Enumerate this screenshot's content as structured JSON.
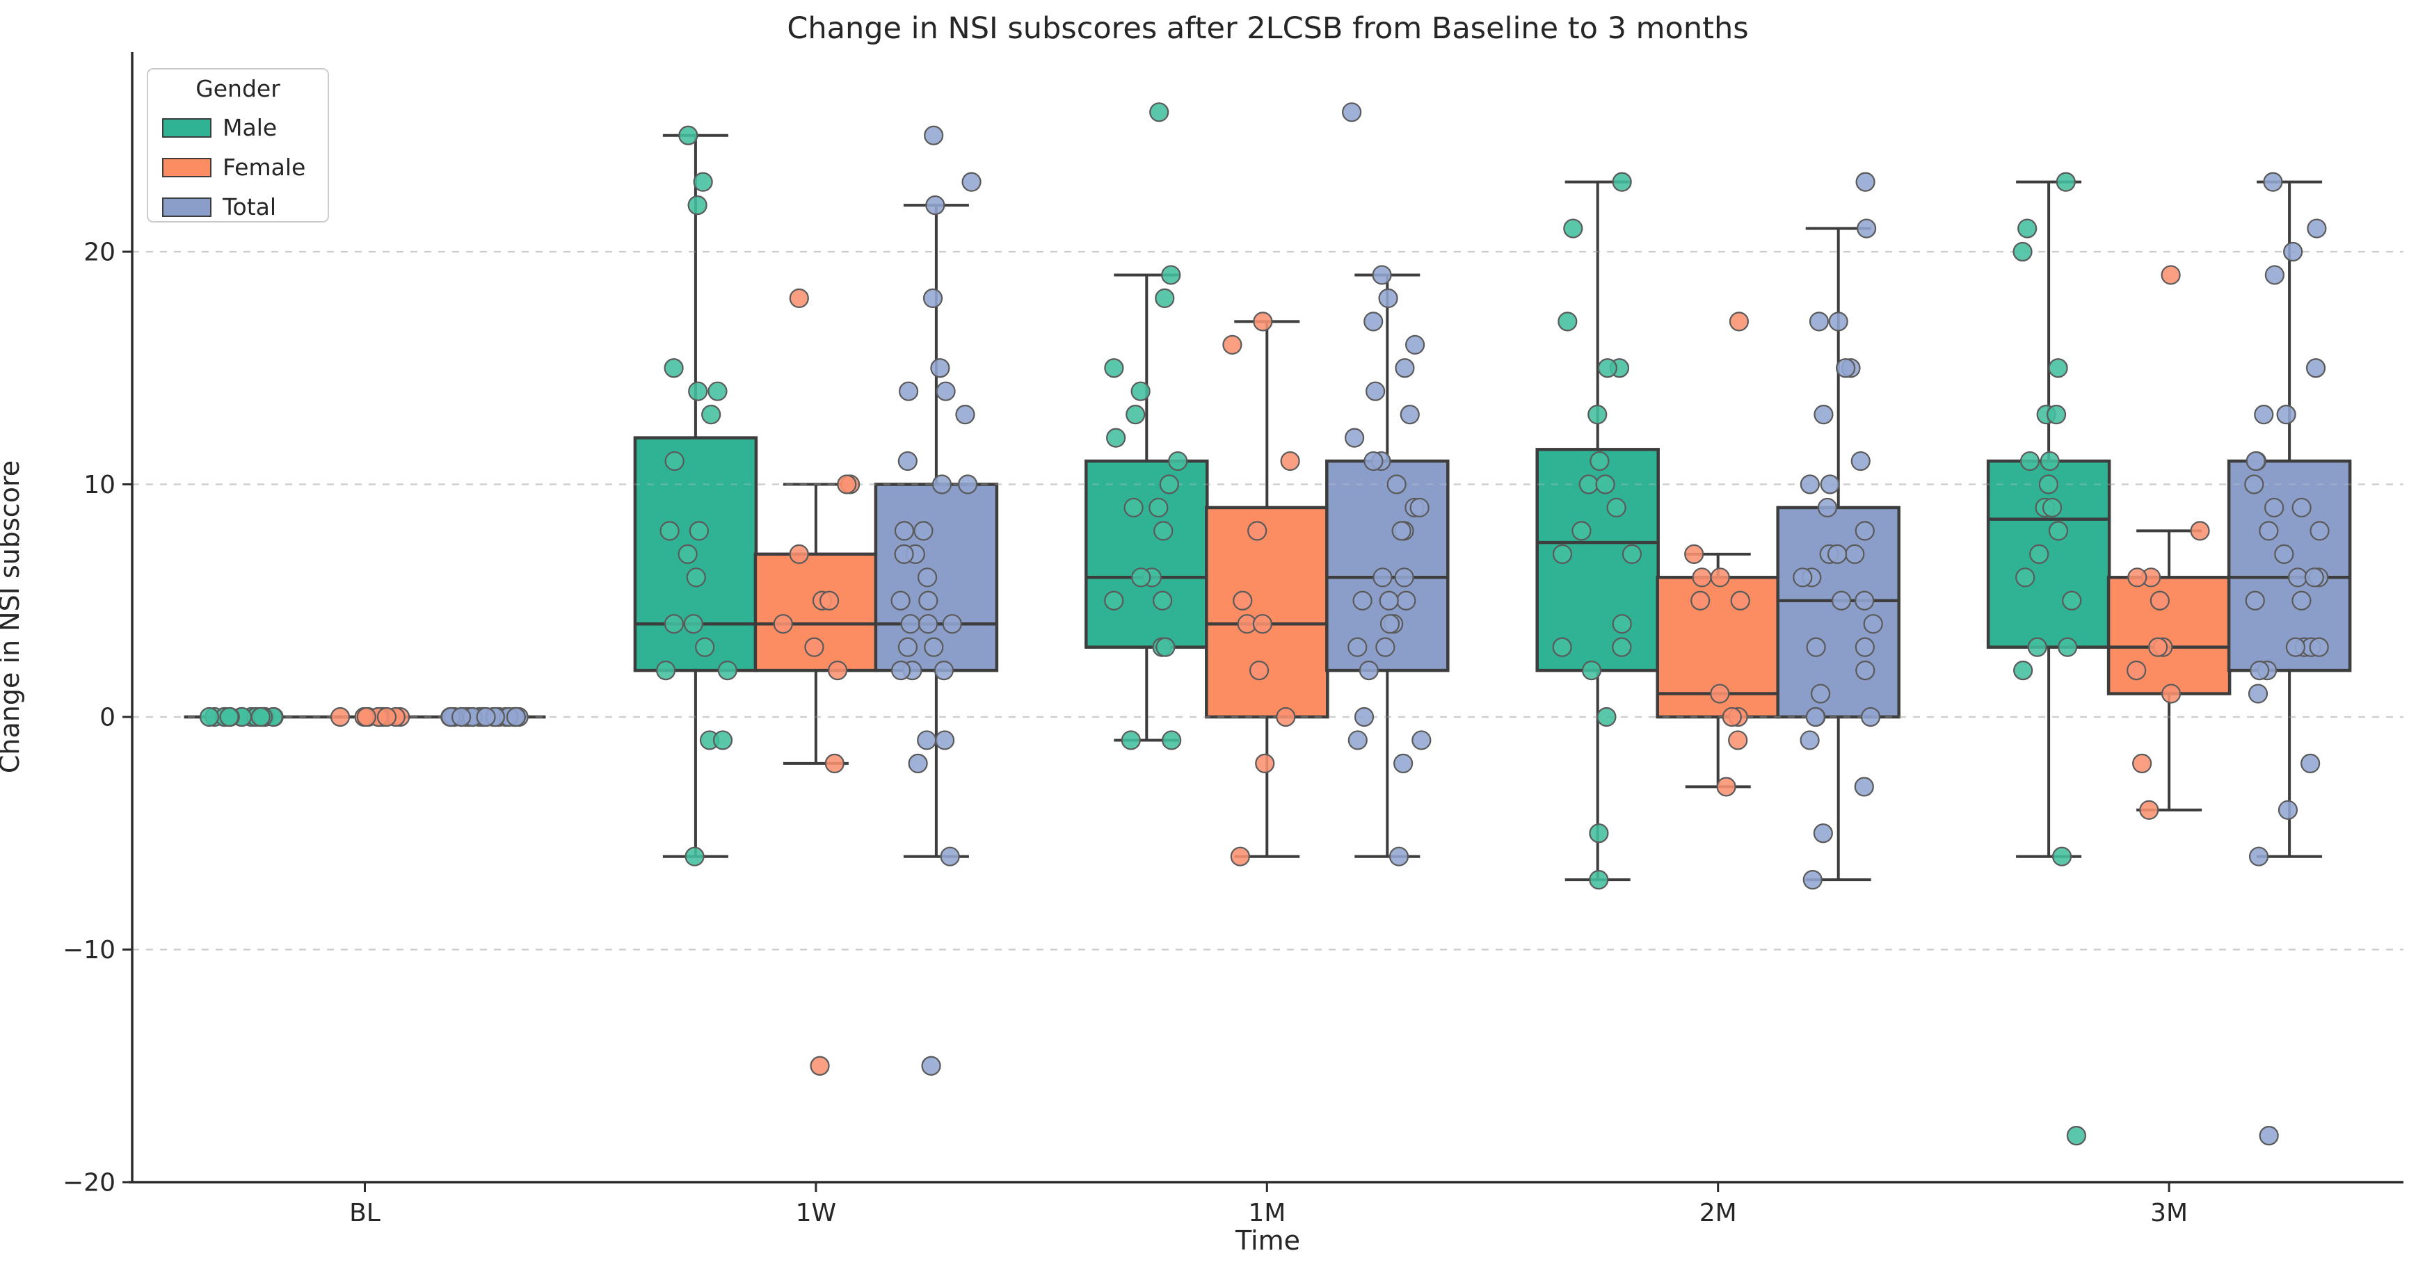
{
  "chart_data": {
    "type": "boxplot+strip",
    "title": "Change in NSI subscores after 2LCSB from Baseline to 3 months",
    "xlabel": "Time",
    "ylabel": "Change in NSI subscore",
    "categories": [
      "BL",
      "1W",
      "1M",
      "2M",
      "3M"
    ],
    "yticks": [
      -20,
      -10,
      0,
      10,
      20
    ],
    "ylim": [
      -20,
      28.6
    ],
    "grid": {
      "axis": "y",
      "style": "dashed",
      "color": "#cdcdcd"
    },
    "legend": {
      "title": "Gender",
      "position": "upper left"
    },
    "edge_color": "#3d3d3d",
    "spine_color": "#2b2b2b",
    "tick_label_color": "#262626",
    "series": [
      {
        "name": "Male",
        "box_color": "#2fb394",
        "point_color": "#43bf9f",
        "boxes": [
          {
            "lo": 0,
            "q1": 0,
            "med": 0,
            "q3": 0,
            "hi": 0
          },
          {
            "lo": -6,
            "q1": 2,
            "med": 4,
            "q3": 12,
            "hi": 25
          },
          {
            "lo": -1,
            "q1": 3,
            "med": 6,
            "q3": 11,
            "hi": 19
          },
          {
            "lo": -7,
            "q1": 2,
            "med": 7.5,
            "q3": 11.5,
            "hi": 23
          },
          {
            "lo": -6,
            "q1": 3,
            "med": 8.5,
            "q3": 11,
            "hi": 23
          }
        ],
        "points": [
          [
            0,
            0,
            0,
            0,
            0,
            0,
            0,
            0,
            0,
            0,
            0,
            0,
            0,
            0,
            0,
            0,
            0,
            0,
            0,
            0
          ],
          [
            25,
            23,
            22,
            15,
            14,
            14,
            13,
            11,
            8,
            8,
            7,
            6,
            4,
            4,
            3,
            2,
            2,
            -1,
            -1,
            -6
          ],
          [
            26,
            19,
            18,
            15,
            14,
            13,
            12,
            11,
            10,
            9,
            9,
            8,
            6,
            6,
            5,
            5,
            3,
            3,
            -1,
            -1
          ],
          [
            23,
            21,
            17,
            15,
            15,
            13,
            11,
            10,
            10,
            9,
            8,
            7,
            7,
            4,
            3,
            3,
            2,
            0,
            -5,
            -7
          ],
          [
            23,
            21,
            20,
            15,
            13,
            13,
            11,
            11,
            10,
            9,
            9,
            8,
            7,
            6,
            5,
            3,
            3,
            2,
            -6,
            -18
          ]
        ]
      },
      {
        "name": "Female",
        "box_color": "#fc8d62",
        "point_color": "#fb9272",
        "boxes": [
          {
            "lo": 0,
            "q1": 0,
            "med": 0,
            "q3": 0,
            "hi": 0
          },
          {
            "lo": -2,
            "q1": 2,
            "med": 4,
            "q3": 7,
            "hi": 10
          },
          {
            "lo": -6,
            "q1": 0,
            "med": 4,
            "q3": 9,
            "hi": 17
          },
          {
            "lo": -3,
            "q1": 0,
            "med": 1,
            "q3": 6,
            "hi": 7
          },
          {
            "lo": -4,
            "q1": 1,
            "med": 3,
            "q3": 6,
            "hi": 8
          }
        ],
        "points": [
          [
            0,
            0,
            0,
            0,
            0,
            0,
            0,
            0,
            0,
            0,
            0
          ],
          [
            18,
            10,
            10,
            7,
            5,
            5,
            4,
            3,
            2,
            -2,
            -15
          ],
          [
            17,
            16,
            11,
            8,
            5,
            4,
            4,
            2,
            0,
            -2,
            -6
          ],
          [
            17,
            7,
            6,
            6,
            5,
            5,
            1,
            0,
            0,
            -1,
            -3
          ],
          [
            19,
            8,
            6,
            6,
            5,
            3,
            3,
            2,
            1,
            -2,
            -4
          ]
        ]
      },
      {
        "name": "Total",
        "box_color": "#8b9dc9",
        "point_color": "#93a6d2",
        "boxes": [
          {
            "lo": 0,
            "q1": 0,
            "med": 0,
            "q3": 0,
            "hi": 0
          },
          {
            "lo": -6,
            "q1": 2,
            "med": 4,
            "q3": 10,
            "hi": 22
          },
          {
            "lo": -6,
            "q1": 2,
            "med": 6,
            "q3": 11,
            "hi": 19
          },
          {
            "lo": -7,
            "q1": 0,
            "med": 5,
            "q3": 9,
            "hi": 21
          },
          {
            "lo": -6,
            "q1": 2,
            "med": 6,
            "q3": 11,
            "hi": 23
          }
        ],
        "points": [
          [
            0,
            0,
            0,
            0,
            0,
            0,
            0,
            0,
            0,
            0,
            0,
            0,
            0,
            0,
            0,
            0,
            0,
            0,
            0,
            0,
            0,
            0,
            0,
            0,
            0,
            0,
            0,
            0,
            0,
            0,
            0
          ],
          [
            25,
            23,
            22,
            15,
            14,
            14,
            13,
            11,
            8,
            8,
            7,
            6,
            4,
            4,
            3,
            2,
            2,
            -1,
            -1,
            -6,
            18,
            10,
            10,
            7,
            5,
            5,
            4,
            3,
            2,
            -2,
            -15
          ],
          [
            26,
            19,
            18,
            15,
            14,
            13,
            12,
            11,
            10,
            9,
            9,
            8,
            6,
            6,
            5,
            5,
            3,
            3,
            -1,
            -1,
            17,
            16,
            11,
            8,
            5,
            4,
            4,
            2,
            0,
            -2,
            -6
          ],
          [
            23,
            21,
            17,
            15,
            15,
            13,
            11,
            10,
            10,
            9,
            8,
            7,
            7,
            4,
            3,
            3,
            2,
            0,
            -5,
            -7,
            17,
            7,
            6,
            6,
            5,
            5,
            1,
            0,
            0,
            -1,
            -3
          ],
          [
            23,
            21,
            20,
            15,
            13,
            13,
            11,
            11,
            10,
            9,
            9,
            8,
            7,
            6,
            5,
            3,
            3,
            2,
            -6,
            -18,
            19,
            8,
            6,
            6,
            5,
            3,
            3,
            2,
            1,
            -2,
            -4
          ]
        ]
      }
    ]
  }
}
